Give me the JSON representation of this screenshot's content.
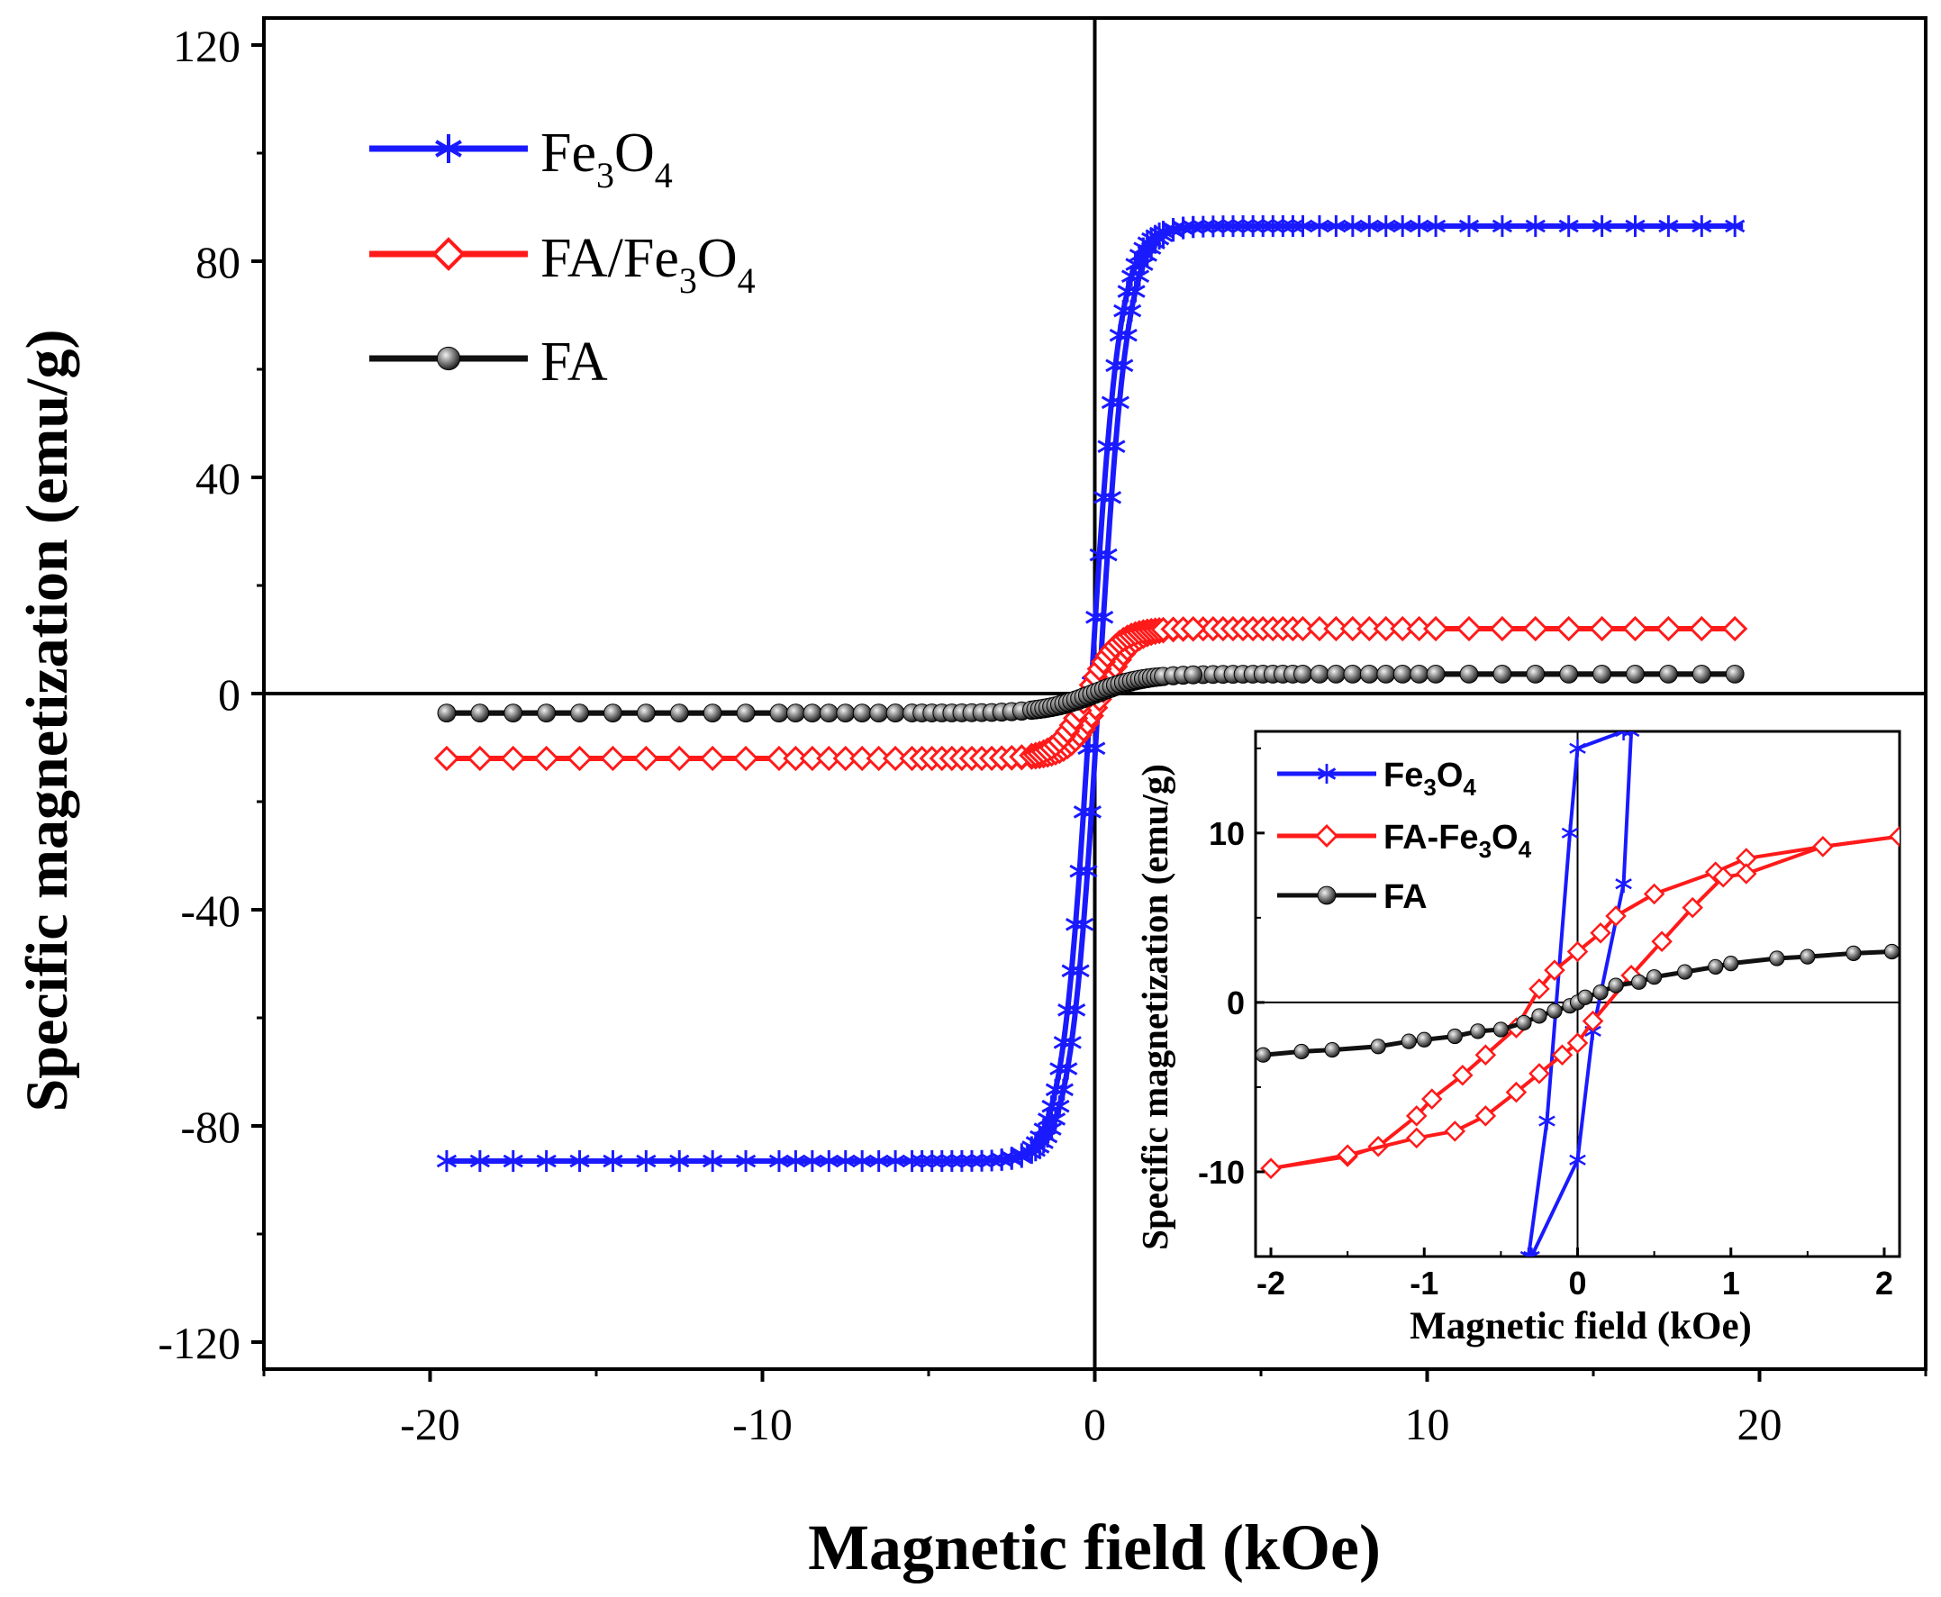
{
  "chart_data": [
    {
      "id": "main",
      "type": "line",
      "xlabel": "Magnetic field (kOe)",
      "ylabel": "Specific magnetization (emu/g)",
      "xlim": [
        -25,
        25
      ],
      "ylim": [
        -125,
        125
      ],
      "x_ticks": [
        -20,
        -10,
        0,
        10,
        20
      ],
      "x_tick_labels": [
        "-20",
        "-10",
        "0",
        "10",
        "20"
      ],
      "y_ticks": [
        -120,
        -80,
        -40,
        0,
        40,
        80,
        120
      ],
      "y_tick_labels": [
        "-120",
        "-80",
        "-40",
        "0",
        "40",
        "80",
        "120"
      ],
      "grid": false,
      "zero_lines": true,
      "legend_position": "top-left",
      "series": [
        {
          "name_main": "Fe",
          "name_sub1": "3",
          "name_mid": "O",
          "name_sub2": "4",
          "color": "#1a1aff",
          "marker": "asterisk",
          "ms": 86.5,
          "hc": 0.12,
          "width": 0.85,
          "xrange": [
            -19.5,
            19.5
          ]
        },
        {
          "name_main": "FA/Fe",
          "name_sub1": "3",
          "name_mid": "O",
          "name_sub2": "4",
          "color": "#ff1a1a",
          "marker": "open-diamond",
          "ms": 12.0,
          "hc": 0.22,
          "width": 0.9,
          "xrange": [
            -19.5,
            19.5
          ]
        },
        {
          "name_main": "FA",
          "name_sub1": "",
          "name_mid": "",
          "name_sub2": "",
          "color": "#111111",
          "marker": "filled-sphere",
          "ms": 3.6,
          "hc": 0.08,
          "width": 1.5,
          "xrange": [
            -19.5,
            19.5
          ]
        }
      ]
    },
    {
      "id": "inset",
      "type": "line",
      "xlabel": "Magnetic field (kOe)",
      "ylabel": "Specific magnetization (emu/g)",
      "xlim": [
        -2.1,
        2.1
      ],
      "ylim": [
        -15,
        16
      ],
      "x_ticks": [
        -2,
        -1,
        0,
        1,
        2
      ],
      "x_tick_labels": [
        "-2",
        "-1",
        "0",
        "1",
        "2"
      ],
      "y_ticks": [
        -10,
        0,
        10
      ],
      "y_tick_labels": [
        "-10",
        "0",
        "10"
      ],
      "grid": false,
      "zero_lines": true,
      "legend_position": "top-left",
      "series": [
        {
          "name_main": "Fe",
          "name_sub1": "3",
          "name_mid": "O",
          "name_sub2": "4",
          "color": "#1a1aff",
          "marker": "asterisk",
          "branch_down": [
            [
              -0.32,
              -15
            ],
            [
              -0.2,
              -7
            ],
            [
              -0.05,
              10
            ],
            [
              0.0,
              15
            ],
            [
              0.3,
              16
            ]
          ],
          "branch_up": [
            [
              -0.3,
              -15
            ],
            [
              0.0,
              -9.3
            ],
            [
              0.1,
              -1.7
            ],
            [
              0.3,
              7
            ],
            [
              0.35,
              16
            ]
          ]
        },
        {
          "name_main": "FA-Fe",
          "name_sub1": "3",
          "name_mid": "O",
          "name_sub2": "4",
          "color": "#ff1a1a",
          "marker": "open-diamond",
          "branch_down": [
            [
              2.1,
              9.8
            ],
            [
              1.6,
              9.2
            ],
            [
              1.1,
              8.5
            ],
            [
              0.9,
              7.7
            ],
            [
              0.5,
              6.4
            ],
            [
              0.25,
              5.1
            ],
            [
              0.15,
              4.1
            ],
            [
              0.0,
              3.0
            ],
            [
              -0.15,
              1.9
            ],
            [
              -0.25,
              0.8
            ],
            [
              -0.4,
              -1.5
            ],
            [
              -0.6,
              -3.1
            ],
            [
              -0.75,
              -4.3
            ],
            [
              -0.95,
              -5.7
            ],
            [
              -1.05,
              -6.7
            ],
            [
              -1.3,
              -8.5
            ],
            [
              -1.5,
              -9.1
            ],
            [
              -2.0,
              -9.8
            ]
          ],
          "branch_up": [
            [
              -2.0,
              -9.8
            ],
            [
              -1.5,
              -9.0
            ],
            [
              -1.05,
              -8.0
            ],
            [
              -0.8,
              -7.6
            ],
            [
              -0.6,
              -6.7
            ],
            [
              -0.4,
              -5.3
            ],
            [
              -0.25,
              -4.2
            ],
            [
              -0.1,
              -3.1
            ],
            [
              0.0,
              -2.4
            ],
            [
              0.1,
              -1.1
            ],
            [
              0.35,
              1.6
            ],
            [
              0.55,
              3.6
            ],
            [
              0.75,
              5.6
            ],
            [
              0.95,
              7.4
            ],
            [
              1.1,
              7.6
            ],
            [
              1.6,
              9.2
            ],
            [
              2.1,
              9.8
            ]
          ]
        },
        {
          "name_main": "FA",
          "name_sub1": "",
          "name_mid": "",
          "name_sub2": "",
          "color": "#111111",
          "marker": "filled-sphere",
          "points": [
            [
              -2.05,
              -3.1
            ],
            [
              -1.8,
              -2.9
            ],
            [
              -1.6,
              -2.8
            ],
            [
              -1.3,
              -2.6
            ],
            [
              -1.1,
              -2.3
            ],
            [
              -1.0,
              -2.2
            ],
            [
              -0.8,
              -2.0
            ],
            [
              -0.65,
              -1.7
            ],
            [
              -0.5,
              -1.6
            ],
            [
              -0.35,
              -1.2
            ],
            [
              -0.25,
              -0.8
            ],
            [
              -0.15,
              -0.5
            ],
            [
              -0.05,
              -0.2
            ],
            [
              0.0,
              0.0
            ],
            [
              0.05,
              0.3
            ],
            [
              0.15,
              0.6
            ],
            [
              0.25,
              1.0
            ],
            [
              0.4,
              1.2
            ],
            [
              0.5,
              1.5
            ],
            [
              0.7,
              1.8
            ],
            [
              0.9,
              2.1
            ],
            [
              1.0,
              2.3
            ],
            [
              1.3,
              2.6
            ],
            [
              1.5,
              2.7
            ],
            [
              1.8,
              2.9
            ],
            [
              2.05,
              3.0
            ]
          ]
        }
      ]
    }
  ]
}
